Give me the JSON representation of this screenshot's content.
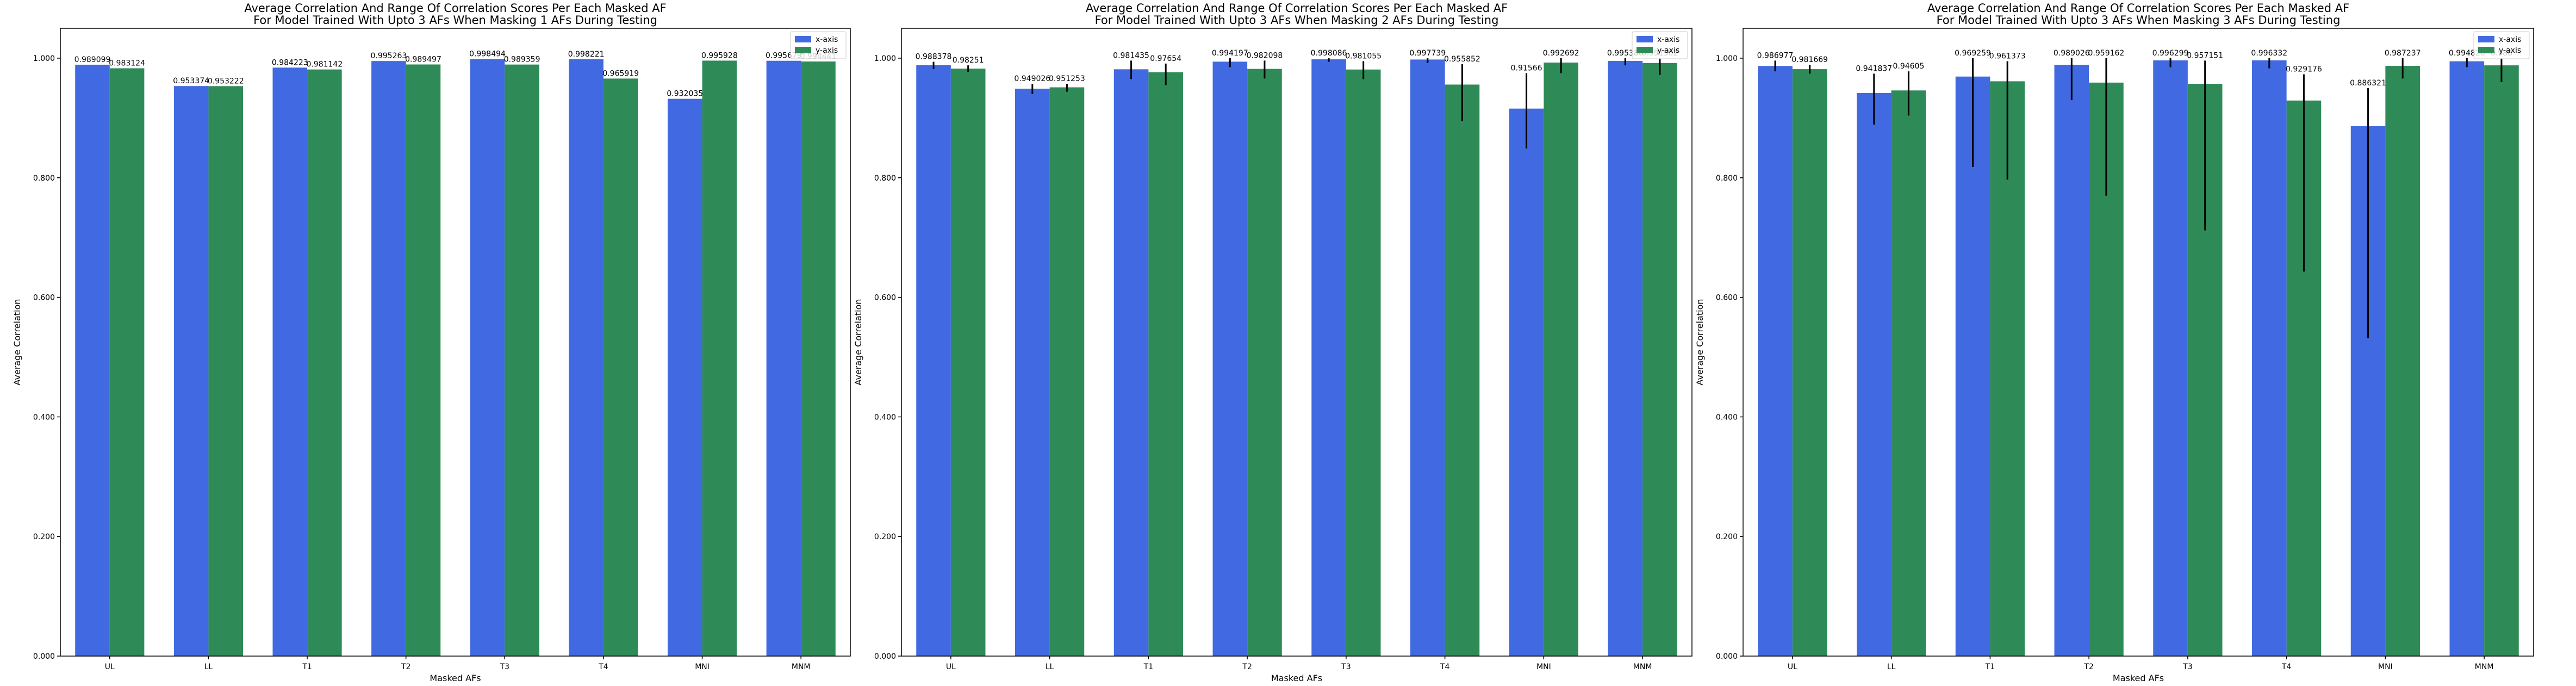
{
  "chart_data": [
    {
      "type": "bar",
      "title_lines": [
        "Average Correlation And Range Of Correlation Scores Per Each Masked AF",
        "For Model Trained With Upto 3 AFs When Masking 1 AFs During Testing"
      ],
      "xlabel": "Masked AFs",
      "ylabel": "Average Correlation",
      "ylim": [
        0,
        1.05
      ],
      "y_ticks": [
        0.0,
        0.2,
        0.4,
        0.6,
        0.8,
        1.0
      ],
      "y_tick_labels": [
        "0.000",
        "0.200",
        "0.400",
        "0.600",
        "0.800",
        "1.000"
      ],
      "grid": false,
      "legend_position": "top-right",
      "categories": [
        "UL",
        "LL",
        "T1",
        "T2",
        "T3",
        "T4",
        "MNI",
        "MNM"
      ],
      "series": [
        {
          "name": "x-axis",
          "color": "#4169e1",
          "values": [
            0.989099,
            0.953374,
            0.984223,
            0.995263,
            0.998494,
            0.998221,
            0.932035,
            0.995679
          ],
          "labels": [
            "0.989099",
            "0.953374",
            "0.984223",
            "0.995263",
            "0.998494",
            "0.998221",
            "0.932035",
            "0.995679"
          ],
          "err_low": [
            0.989099,
            0.953374,
            0.984223,
            0.995263,
            0.998494,
            0.998221,
            0.932035,
            0.995679
          ],
          "err_high": [
            0.989099,
            0.953374,
            0.984223,
            0.995263,
            0.998494,
            0.998221,
            0.932035,
            0.995679
          ]
        },
        {
          "name": "y-axis",
          "color": "#2e8b57",
          "values": [
            0.983124,
            0.953222,
            0.981142,
            0.989497,
            0.989359,
            0.965919,
            0.995928,
            0.994441
          ],
          "labels": [
            "0.983124",
            "0.953222",
            "0.981142",
            "0.989497",
            "0.989359",
            "0.965919",
            "0.995928",
            "0.994441"
          ],
          "err_low": [
            0.983124,
            0.953222,
            0.981142,
            0.989497,
            0.989359,
            0.965919,
            0.995928,
            0.994441
          ],
          "err_high": [
            0.983124,
            0.953222,
            0.981142,
            0.989497,
            0.989359,
            0.965919,
            0.995928,
            0.994441
          ]
        }
      ]
    },
    {
      "type": "bar",
      "title_lines": [
        "Average Correlation And Range Of Correlation Scores Per Each Masked AF",
        "For Model Trained With Upto 3 AFs When Masking 2 AFs During Testing"
      ],
      "xlabel": "Masked AFs",
      "ylabel": "Average Correlation",
      "ylim": [
        0,
        1.05
      ],
      "y_ticks": [
        0.0,
        0.2,
        0.4,
        0.6,
        0.8,
        1.0
      ],
      "y_tick_labels": [
        "0.000",
        "0.200",
        "0.400",
        "0.600",
        "0.800",
        "1.000"
      ],
      "grid": false,
      "legend_position": "top-right",
      "categories": [
        "UL",
        "LL",
        "T1",
        "T2",
        "T3",
        "T4",
        "MNI",
        "MNM"
      ],
      "series": [
        {
          "name": "x-axis",
          "color": "#4169e1",
          "values": [
            0.988378,
            0.949026,
            0.981435,
            0.994197,
            0.998086,
            0.997739,
            0.91566,
            0.995386
          ],
          "labels": [
            "0.988378",
            "0.949026",
            "0.981435",
            "0.994197",
            "0.998086",
            "0.997739",
            "0.91566",
            "0.995386"
          ],
          "err_low": [
            0.982,
            0.94,
            0.965,
            0.985,
            0.994,
            0.992,
            0.849,
            0.988
          ],
          "err_high": [
            0.994,
            0.957,
            0.996,
            1.0,
            1.0,
            1.0,
            0.975,
            1.0
          ]
        },
        {
          "name": "y-axis",
          "color": "#2e8b57",
          "values": [
            0.98251,
            0.951253,
            0.97654,
            0.982098,
            0.981055,
            0.955852,
            0.992692,
            0.991962
          ],
          "labels": [
            "0.98251",
            "0.951253",
            "0.97654",
            "0.982098",
            "0.981055",
            "0.955852",
            "0.992692",
            "0.991962"
          ],
          "err_low": [
            0.977,
            0.944,
            0.955,
            0.966,
            0.965,
            0.895,
            0.975,
            0.972
          ],
          "err_high": [
            0.988,
            0.957,
            0.991,
            0.996,
            0.995,
            0.99,
            1.0,
            1.0
          ]
        }
      ]
    },
    {
      "type": "bar",
      "title_lines": [
        "Average Correlation And Range Of Correlation Scores Per Each Masked AF",
        "For Model Trained With Upto 3 AFs When Masking 3 AFs During Testing"
      ],
      "xlabel": "Masked AFs",
      "ylabel": "Average Correlation",
      "ylim": [
        0,
        1.05
      ],
      "y_ticks": [
        0.0,
        0.2,
        0.4,
        0.6,
        0.8,
        1.0
      ],
      "y_tick_labels": [
        "0.000",
        "0.200",
        "0.400",
        "0.600",
        "0.800",
        "1.000"
      ],
      "grid": false,
      "legend_position": "top-right",
      "categories": [
        "UL",
        "LL",
        "T1",
        "T2",
        "T3",
        "T4",
        "MNI",
        "MNM"
      ],
      "series": [
        {
          "name": "x-axis",
          "color": "#4169e1",
          "values": [
            0.986977,
            0.941837,
            0.969259,
            0.989026,
            0.996299,
            0.996332,
            0.886321,
            0.994826
          ],
          "labels": [
            "0.986977",
            "0.941837",
            "0.969259",
            "0.989026",
            "0.996299",
            "0.996332",
            "0.886321",
            "0.994826"
          ],
          "err_low": [
            0.978,
            0.889,
            0.818,
            0.93,
            0.985,
            0.983,
            0.532,
            0.985
          ],
          "err_high": [
            0.996,
            0.974,
            1.0,
            1.0,
            1.0,
            1.0,
            0.95,
            1.0
          ]
        },
        {
          "name": "y-axis",
          "color": "#2e8b57",
          "values": [
            0.981669,
            0.94605,
            0.961373,
            0.959162,
            0.957151,
            0.929176,
            0.987237,
            0.988008
          ],
          "labels": [
            "0.981669",
            "0.94605",
            "0.961373",
            "0.959162",
            "0.957151",
            "0.929176",
            "0.987237",
            "0.988"
          ],
          "err_low": [
            0.974,
            0.904,
            0.797,
            0.77,
            0.712,
            0.643,
            0.966,
            0.96
          ],
          "err_high": [
            0.989,
            0.978,
            0.995,
            1.0,
            0.996,
            0.973,
            1.0,
            1.0
          ]
        }
      ]
    }
  ]
}
